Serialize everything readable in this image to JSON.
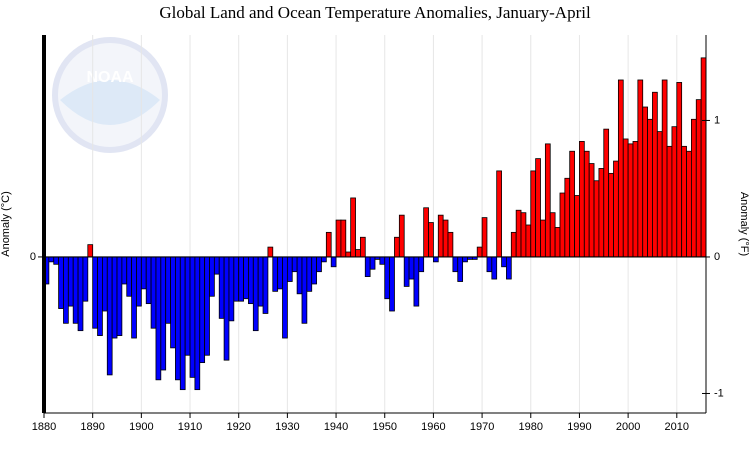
{
  "chart_data": {
    "type": "bar",
    "title": "Global Land and Ocean Temperature Anomalies, January-April",
    "y_label": "Anomaly (°C)",
    "y2_label": "Anomaly (°F)",
    "x": [
      1880,
      1881,
      1882,
      1883,
      1884,
      1885,
      1886,
      1887,
      1888,
      1889,
      1890,
      1891,
      1892,
      1893,
      1894,
      1895,
      1896,
      1897,
      1898,
      1899,
      1900,
      1901,
      1902,
      1903,
      1904,
      1905,
      1906,
      1907,
      1908,
      1909,
      1910,
      1911,
      1912,
      1913,
      1914,
      1915,
      1916,
      1917,
      1918,
      1919,
      1920,
      1921,
      1922,
      1923,
      1924,
      1925,
      1926,
      1927,
      1928,
      1929,
      1930,
      1931,
      1932,
      1933,
      1934,
      1935,
      1936,
      1937,
      1938,
      1939,
      1940,
      1941,
      1942,
      1943,
      1944,
      1945,
      1946,
      1947,
      1948,
      1949,
      1950,
      1951,
      1952,
      1953,
      1954,
      1955,
      1956,
      1957,
      1958,
      1959,
      1960,
      1961,
      1962,
      1963,
      1964,
      1965,
      1966,
      1967,
      1968,
      1969,
      1970,
      1971,
      1972,
      1973,
      1974,
      1975,
      1976,
      1977,
      1978,
      1979,
      1980,
      1981,
      1982,
      1983,
      1984,
      1985,
      1986,
      1987,
      1988,
      1989,
      1990,
      1991,
      1992,
      1993,
      1994,
      1995,
      1996,
      1997,
      1998,
      1999,
      2000,
      2001,
      2002,
      2003,
      2004,
      2005,
      2006,
      2007,
      2008,
      2009,
      2010,
      2011,
      2012,
      2013,
      2014,
      2015
    ],
    "values": [
      -0.11,
      -0.02,
      -0.03,
      -0.21,
      -0.27,
      -0.2,
      -0.27,
      -0.3,
      -0.18,
      0.05,
      -0.29,
      -0.32,
      -0.22,
      -0.48,
      -0.33,
      -0.32,
      -0.11,
      -0.16,
      -0.33,
      -0.2,
      -0.13,
      -0.19,
      -0.29,
      -0.5,
      -0.46,
      -0.27,
      -0.37,
      -0.5,
      -0.54,
      -0.4,
      -0.49,
      -0.54,
      -0.43,
      -0.4,
      -0.16,
      -0.07,
      -0.25,
      -0.42,
      -0.26,
      -0.18,
      -0.18,
      -0.17,
      -0.19,
      -0.3,
      -0.2,
      -0.23,
      0.04,
      -0.14,
      -0.13,
      -0.33,
      -0.1,
      -0.06,
      -0.15,
      -0.27,
      -0.14,
      -0.11,
      -0.06,
      -0.02,
      0.1,
      -0.04,
      0.15,
      0.15,
      0.02,
      0.24,
      0.03,
      0.08,
      -0.08,
      -0.05,
      -0.01,
      -0.03,
      -0.17,
      -0.22,
      0.08,
      0.17,
      -0.12,
      -0.09,
      -0.2,
      -0.06,
      0.2,
      0.14,
      -0.02,
      0.17,
      0.15,
      0.1,
      -0.06,
      -0.1,
      -0.02,
      -0.01,
      -0.01,
      0.04,
      0.16,
      -0.06,
      -0.09,
      0.35,
      -0.04,
      -0.09,
      0.1,
      0.19,
      0.18,
      0.13,
      0.35,
      0.4,
      0.15,
      0.46,
      0.18,
      0.12,
      0.26,
      0.32,
      0.43,
      0.25,
      0.47,
      0.43,
      0.38,
      0.31,
      0.36,
      0.52,
      0.34,
      0.39,
      0.72,
      0.48,
      0.46,
      0.47,
      0.72,
      0.61,
      0.56,
      0.67,
      0.51,
      0.72,
      0.45,
      0.53,
      0.71,
      0.45,
      0.43,
      0.56,
      0.64,
      0.81
    ],
    "positive_color": "#ff0000",
    "negative_color": "#0000ff",
    "xlim": [
      1880,
      2016
    ],
    "xticks": [
      1880,
      1890,
      1900,
      1910,
      1920,
      1930,
      1940,
      1950,
      1960,
      1970,
      1980,
      1990,
      2000,
      2010
    ],
    "ylim": [
      -0.635,
      0.903
    ],
    "yticks": [
      0
    ],
    "y2lim": [
      -1.143,
      1.626
    ],
    "y2ticks": [
      -1,
      0,
      1
    ],
    "grid": true
  }
}
